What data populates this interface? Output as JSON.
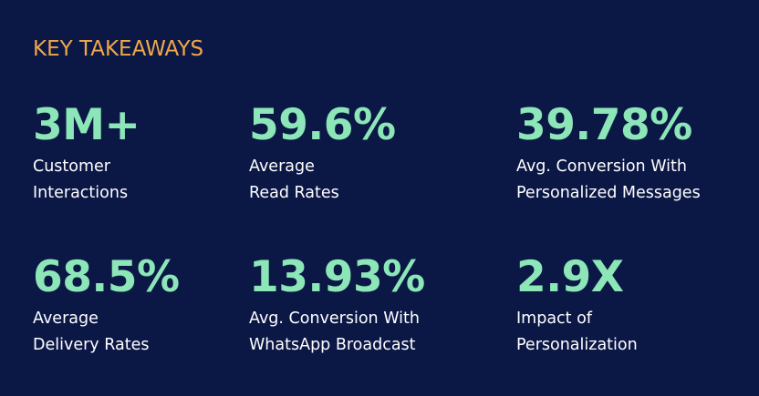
{
  "heading": "KEY TAKEAWAYS",
  "stats": [
    {
      "value": "3M+",
      "label_line1": "Customer",
      "label_line2": "Interactions"
    },
    {
      "value": "59.6%",
      "label_line1": "Average",
      "label_line2": "Read Rates"
    },
    {
      "value": "39.78%",
      "label_line1": "Avg. Conversion With",
      "label_line2": "Personalized Messages"
    },
    {
      "value": "68.5%",
      "label_line1": "Average",
      "label_line2": "Delivery Rates"
    },
    {
      "value": "13.93%",
      "label_line1": "Avg. Conversion With",
      "label_line2": "WhatsApp Broadcast"
    },
    {
      "value": "2.9X",
      "label_line1": "Impact of",
      "label_line2": "Personalization"
    }
  ],
  "colors": {
    "background": "#0b1846",
    "heading": "#f0a748",
    "value": "#8ce6b8",
    "label": "#ffffff"
  }
}
